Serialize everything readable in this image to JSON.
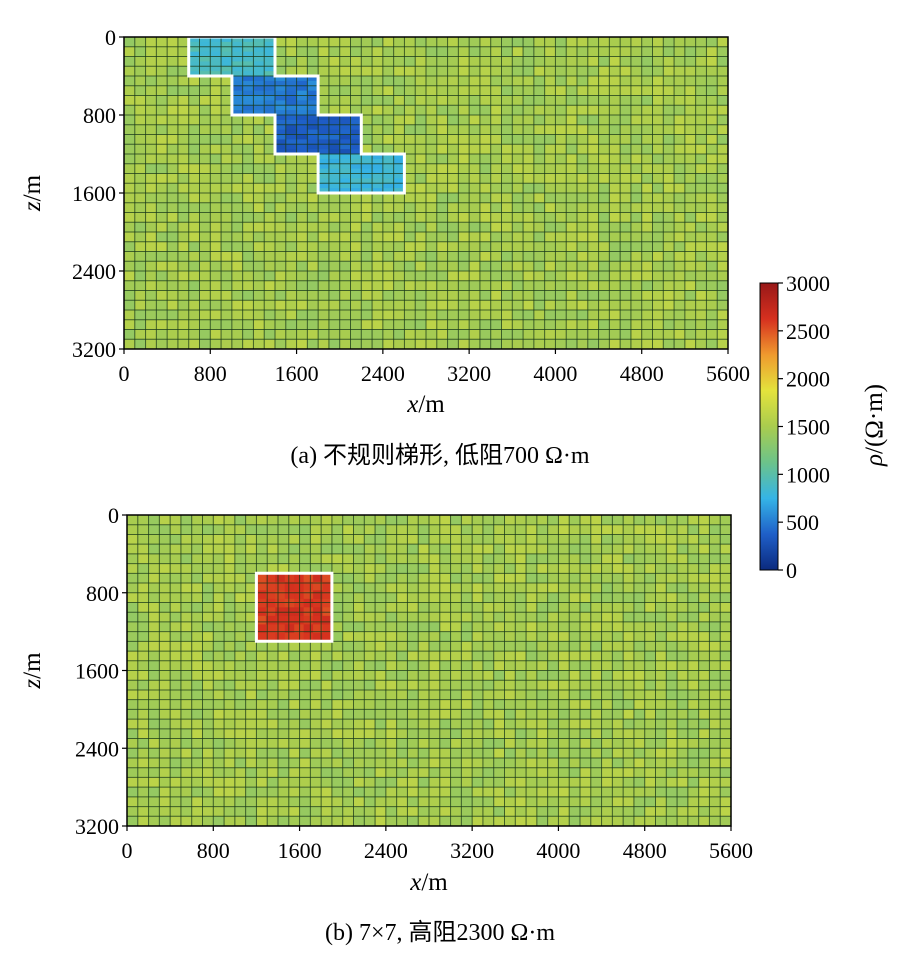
{
  "chart_data": [
    {
      "type": "heatmap",
      "caption": "(a) 不规则梯形, 低阻700 Ω·m",
      "xlabel_var": "x",
      "xlabel_unit": "/m",
      "ylabel_var": "z",
      "ylabel_unit": "/m",
      "xlim": [
        0,
        5600
      ],
      "ylim": [
        0,
        3200
      ],
      "y_inverted": true,
      "xticks": [
        0,
        800,
        1600,
        2400,
        3200,
        4000,
        4800,
        5600
      ],
      "yticks": [
        0,
        800,
        1600,
        2400,
        3200
      ],
      "grid": true,
      "cell_size_m": 200,
      "background_resistivity": 1500,
      "anomaly_resistivity": 700,
      "anomaly_outline": [
        [
          600,
          0
        ],
        [
          1400,
          0
        ],
        [
          1400,
          400
        ],
        [
          1800,
          400
        ],
        [
          1800,
          800
        ],
        [
          2200,
          800
        ],
        [
          2200,
          1200
        ],
        [
          2600,
          1200
        ],
        [
          2600,
          1600
        ],
        [
          1800,
          1600
        ],
        [
          1800,
          1200
        ],
        [
          1400,
          1200
        ],
        [
          1400,
          800
        ],
        [
          1000,
          800
        ],
        [
          1000,
          400
        ],
        [
          600,
          400
        ]
      ],
      "anomaly_cells": [
        {
          "x0": 600,
          "x1": 1400,
          "z0": 0,
          "z1": 400,
          "v": 900
        },
        {
          "x0": 1000,
          "x1": 1800,
          "z0": 400,
          "z1": 800,
          "v": 500
        },
        {
          "x0": 1400,
          "x1": 2200,
          "z0": 800,
          "z1": 1200,
          "v": 350
        },
        {
          "x0": 1800,
          "x1": 2600,
          "z0": 1200,
          "z1": 1600,
          "v": 800
        }
      ]
    },
    {
      "type": "heatmap",
      "caption": "(b) 7×7, 高阻2300 Ω·m",
      "xlabel_var": "x",
      "xlabel_unit": "/m",
      "ylabel_var": "z",
      "ylabel_unit": "/m",
      "xlim": [
        0,
        5600
      ],
      "ylim": [
        0,
        3200
      ],
      "y_inverted": true,
      "xticks": [
        0,
        800,
        1600,
        2400,
        3200,
        4000,
        4800,
        5600
      ],
      "yticks": [
        0,
        800,
        1600,
        2400,
        3200
      ],
      "grid": true,
      "cell_size_m": 200,
      "background_resistivity": 1500,
      "anomaly_resistivity": 2300,
      "anomaly_outline": [
        [
          1200,
          600
        ],
        [
          1900,
          600
        ],
        [
          1900,
          1300
        ],
        [
          1200,
          1300
        ]
      ],
      "anomaly_cells": [
        {
          "x0": 1200,
          "x1": 1900,
          "z0": 600,
          "z1": 1300,
          "v": 2600
        }
      ]
    }
  ],
  "colorbar": {
    "label": "ρ/(Ω·m)",
    "min": 0,
    "max": 3000,
    "ticks": [
      0,
      500,
      1000,
      1500,
      2000,
      2500,
      3000
    ],
    "colormap": [
      "#0b2a7e",
      "#1f5fc8",
      "#35b4e6",
      "#6cc38a",
      "#a9cc4e",
      "#e4e33c",
      "#ef9a2e",
      "#d6301f",
      "#981818"
    ]
  },
  "colors": {
    "background": "#78b85a",
    "gridline": "#1a3a1a",
    "outline": "#ffffff"
  }
}
